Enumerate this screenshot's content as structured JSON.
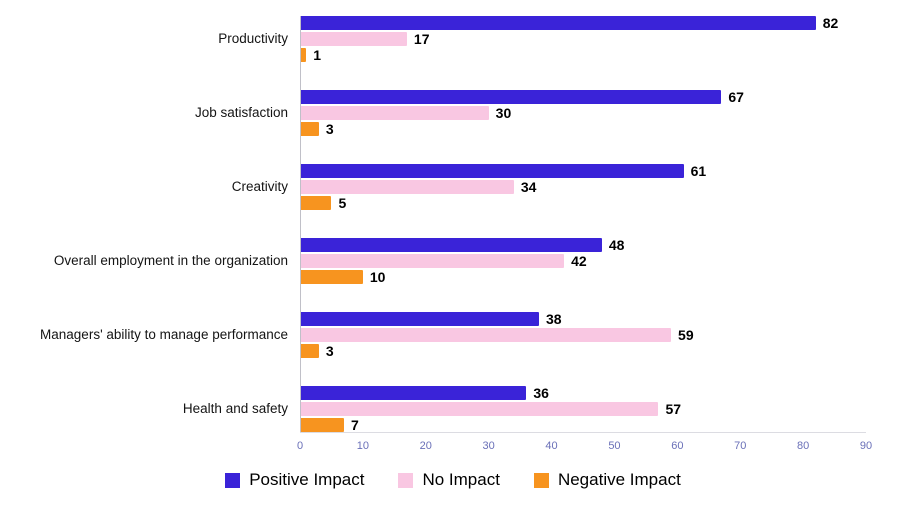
{
  "chart_data": {
    "type": "bar",
    "orientation": "horizontal",
    "title": "",
    "xlabel": "",
    "ylabel": "",
    "xlim": [
      0,
      90
    ],
    "x_ticks": [
      0,
      10,
      20,
      30,
      40,
      50,
      60,
      70,
      80,
      90
    ],
    "grid": false,
    "legend_position": "bottom",
    "categories": [
      "Productivity",
      "Job satisfaction",
      "Creativity",
      "Overall employment in the organization",
      "Managers' ability to manage performance",
      "Health and safety"
    ],
    "series": [
      {
        "name": "Positive Impact",
        "color": "#3a23d8",
        "values": [
          82,
          67,
          61,
          48,
          38,
          36
        ]
      },
      {
        "name": "No Impact",
        "color": "#f9c7e2",
        "values": [
          17,
          30,
          34,
          42,
          59,
          57
        ]
      },
      {
        "name": "Negative Impact",
        "color": "#f7941f",
        "values": [
          1,
          3,
          5,
          10,
          3,
          7
        ]
      }
    ]
  },
  "colors": {
    "tick_label": "#6a70b8",
    "axis_line": "#c0c0c8",
    "baseline": "#dcdce2",
    "value_label": "#000000",
    "category_label": "#141414"
  }
}
